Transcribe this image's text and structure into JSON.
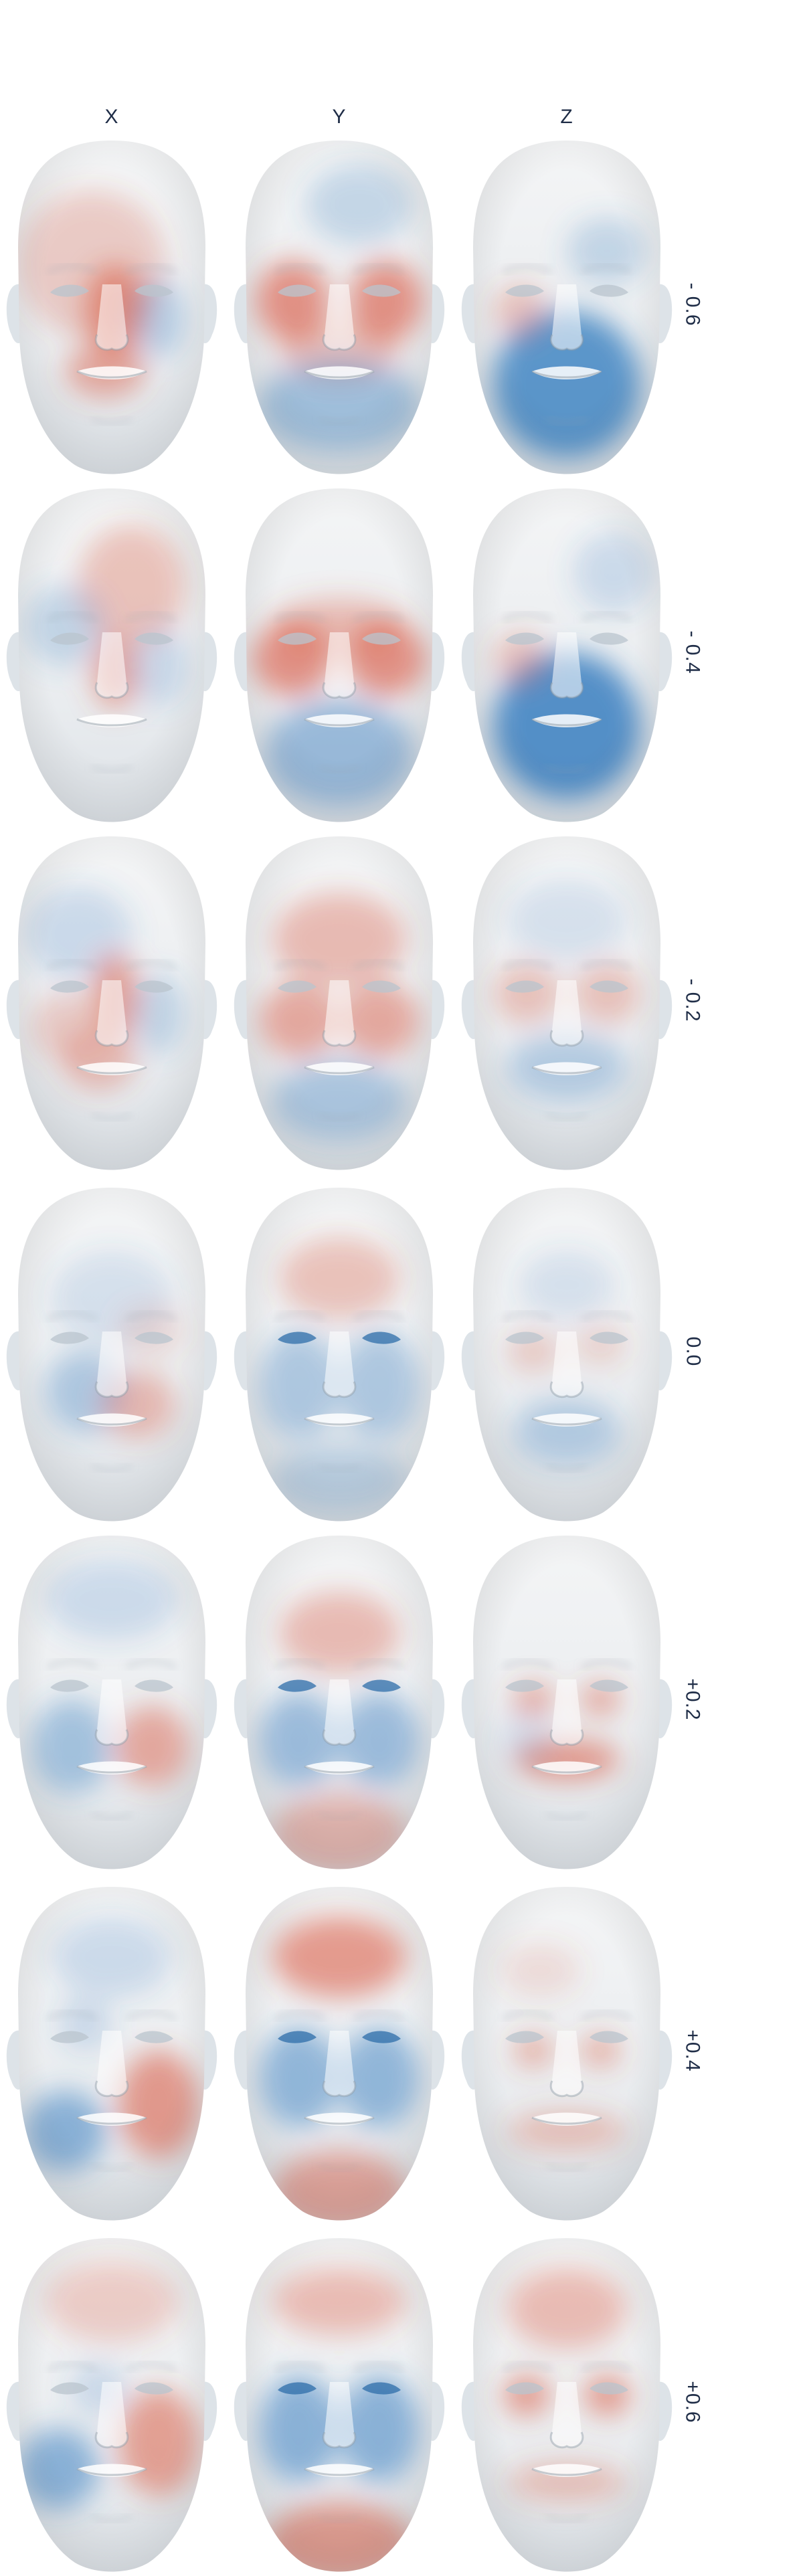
{
  "columns": [
    {
      "label": "X"
    },
    {
      "label": "Y"
    },
    {
      "label": "Z"
    }
  ],
  "rows": [
    {
      "label": "- 0.6"
    },
    {
      "label": "- 0.4"
    },
    {
      "label": "- 0.2"
    },
    {
      "label": "0.0"
    },
    {
      "label": "+0.2"
    },
    {
      "label": "+0.4"
    },
    {
      "label": "+0.6"
    }
  ],
  "colormap": {
    "negative": "#3a7fc1",
    "neutral": "#eceef0",
    "positive": "#d9543a"
  }
}
